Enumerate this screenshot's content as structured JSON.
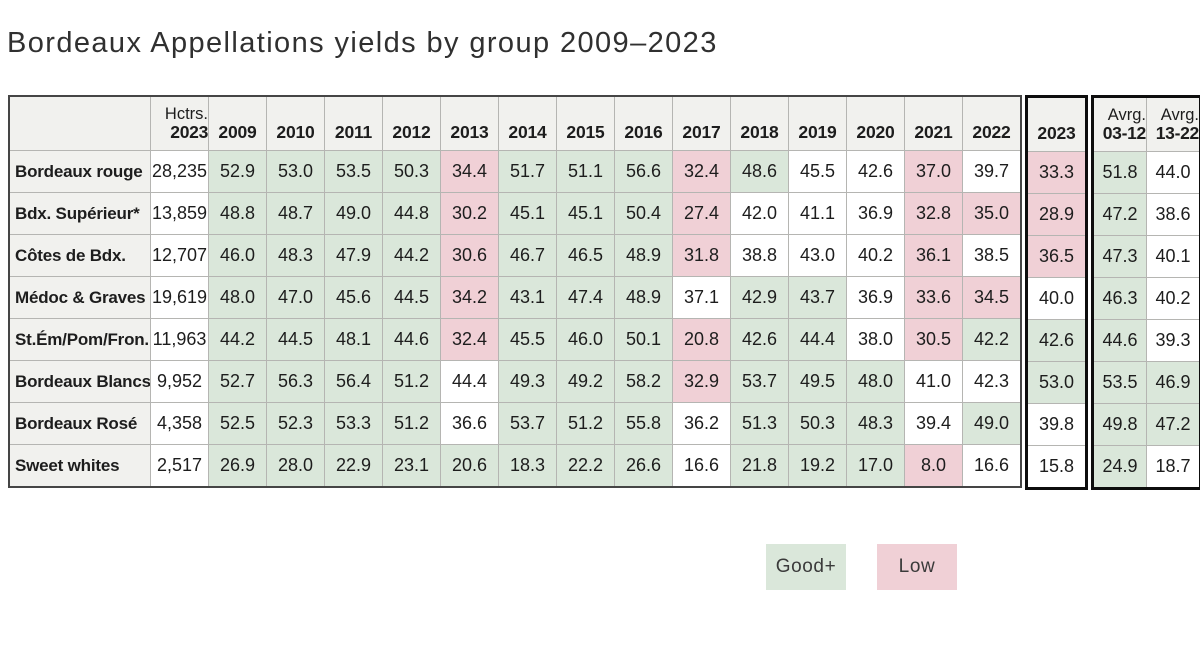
{
  "chart_data": {
    "type": "table",
    "title": "Bordeaux Appellations yields by group 2009–2023",
    "columns": {
      "hectares_header": {
        "line1": "Hctrs.",
        "line2": "2023"
      },
      "years": [
        "2009",
        "2010",
        "2011",
        "2012",
        "2013",
        "2014",
        "2015",
        "2016",
        "2017",
        "2018",
        "2019",
        "2020",
        "2021",
        "2022"
      ],
      "year_2023_label": "2023",
      "avg_headers": [
        {
          "line1": "Avrg.",
          "line2": "03-12"
        },
        {
          "line1": "Avrg.",
          "line2": "13-22"
        }
      ]
    },
    "state_meaning": {
      "good": "Good+",
      "low": "Low",
      "neutral": "unshaded"
    },
    "rows": [
      {
        "label": "Bordeaux rouge",
        "hectares": "28,235",
        "yields": [
          [
            "52.9",
            "good"
          ],
          [
            "53.0",
            "good"
          ],
          [
            "53.5",
            "good"
          ],
          [
            "50.3",
            "good"
          ],
          [
            "34.4",
            "low"
          ],
          [
            "51.7",
            "good"
          ],
          [
            "51.1",
            "good"
          ],
          [
            "56.6",
            "good"
          ],
          [
            "32.4",
            "low"
          ],
          [
            "48.6",
            "good"
          ],
          [
            "45.5",
            "neutral"
          ],
          [
            "42.6",
            "neutral"
          ],
          [
            "37.0",
            "low"
          ],
          [
            "39.7",
            "neutral"
          ]
        ],
        "y2023": [
          "33.3",
          "low"
        ],
        "averages": [
          [
            "51.8",
            "good"
          ],
          [
            "44.0",
            "neutral"
          ]
        ]
      },
      {
        "label": "Bdx. Supérieur*",
        "hectares": "13,859",
        "yields": [
          [
            "48.8",
            "good"
          ],
          [
            "48.7",
            "good"
          ],
          [
            "49.0",
            "good"
          ],
          [
            "44.8",
            "good"
          ],
          [
            "30.2",
            "low"
          ],
          [
            "45.1",
            "good"
          ],
          [
            "45.1",
            "good"
          ],
          [
            "50.4",
            "good"
          ],
          [
            "27.4",
            "low"
          ],
          [
            "42.0",
            "neutral"
          ],
          [
            "41.1",
            "neutral"
          ],
          [
            "36.9",
            "neutral"
          ],
          [
            "32.8",
            "low"
          ],
          [
            "35.0",
            "low"
          ]
        ],
        "y2023": [
          "28.9",
          "low"
        ],
        "averages": [
          [
            "47.2",
            "good"
          ],
          [
            "38.6",
            "neutral"
          ]
        ]
      },
      {
        "label": "Côtes de Bdx.",
        "hectares": "12,707",
        "yields": [
          [
            "46.0",
            "good"
          ],
          [
            "48.3",
            "good"
          ],
          [
            "47.9",
            "good"
          ],
          [
            "44.2",
            "good"
          ],
          [
            "30.6",
            "low"
          ],
          [
            "46.7",
            "good"
          ],
          [
            "46.5",
            "good"
          ],
          [
            "48.9",
            "good"
          ],
          [
            "31.8",
            "low"
          ],
          [
            "38.8",
            "neutral"
          ],
          [
            "43.0",
            "neutral"
          ],
          [
            "40.2",
            "neutral"
          ],
          [
            "36.1",
            "low"
          ],
          [
            "38.5",
            "neutral"
          ]
        ],
        "y2023": [
          "36.5",
          "low"
        ],
        "averages": [
          [
            "47.3",
            "good"
          ],
          [
            "40.1",
            "neutral"
          ]
        ]
      },
      {
        "label": "Médoc & Graves",
        "hectares": "19,619",
        "yields": [
          [
            "48.0",
            "good"
          ],
          [
            "47.0",
            "good"
          ],
          [
            "45.6",
            "good"
          ],
          [
            "44.5",
            "good"
          ],
          [
            "34.2",
            "low"
          ],
          [
            "43.1",
            "good"
          ],
          [
            "47.4",
            "good"
          ],
          [
            "48.9",
            "good"
          ],
          [
            "37.1",
            "neutral"
          ],
          [
            "42.9",
            "good"
          ],
          [
            "43.7",
            "good"
          ],
          [
            "36.9",
            "neutral"
          ],
          [
            "33.6",
            "low"
          ],
          [
            "34.5",
            "low"
          ]
        ],
        "y2023": [
          "40.0",
          "neutral"
        ],
        "averages": [
          [
            "46.3",
            "good"
          ],
          [
            "40.2",
            "neutral"
          ]
        ]
      },
      {
        "label": "St.Ém/Pom/Fron.",
        "hectares": "11,963",
        "yields": [
          [
            "44.2",
            "good"
          ],
          [
            "44.5",
            "good"
          ],
          [
            "48.1",
            "good"
          ],
          [
            "44.6",
            "good"
          ],
          [
            "32.4",
            "low"
          ],
          [
            "45.5",
            "good"
          ],
          [
            "46.0",
            "good"
          ],
          [
            "50.1",
            "good"
          ],
          [
            "20.8",
            "low"
          ],
          [
            "42.6",
            "good"
          ],
          [
            "44.4",
            "good"
          ],
          [
            "38.0",
            "neutral"
          ],
          [
            "30.5",
            "low"
          ],
          [
            "42.2",
            "good"
          ]
        ],
        "y2023": [
          "42.6",
          "good"
        ],
        "averages": [
          [
            "44.6",
            "good"
          ],
          [
            "39.3",
            "neutral"
          ]
        ]
      },
      {
        "label": "Bordeaux Blancs",
        "hectares": "9,952",
        "yields": [
          [
            "52.7",
            "good"
          ],
          [
            "56.3",
            "good"
          ],
          [
            "56.4",
            "good"
          ],
          [
            "51.2",
            "good"
          ],
          [
            "44.4",
            "neutral"
          ],
          [
            "49.3",
            "good"
          ],
          [
            "49.2",
            "good"
          ],
          [
            "58.2",
            "good"
          ],
          [
            "32.9",
            "low"
          ],
          [
            "53.7",
            "good"
          ],
          [
            "49.5",
            "good"
          ],
          [
            "48.0",
            "good"
          ],
          [
            "41.0",
            "neutral"
          ],
          [
            "42.3",
            "neutral"
          ]
        ],
        "y2023": [
          "53.0",
          "good"
        ],
        "averages": [
          [
            "53.5",
            "good"
          ],
          [
            "46.9",
            "good"
          ]
        ]
      },
      {
        "label": "Bordeaux Rosé",
        "hectares": "4,358",
        "yields": [
          [
            "52.5",
            "good"
          ],
          [
            "52.3",
            "good"
          ],
          [
            "53.3",
            "good"
          ],
          [
            "51.2",
            "good"
          ],
          [
            "36.6",
            "neutral"
          ],
          [
            "53.7",
            "good"
          ],
          [
            "51.2",
            "good"
          ],
          [
            "55.8",
            "good"
          ],
          [
            "36.2",
            "neutral"
          ],
          [
            "51.3",
            "good"
          ],
          [
            "50.3",
            "good"
          ],
          [
            "48.3",
            "good"
          ],
          [
            "39.4",
            "neutral"
          ],
          [
            "49.0",
            "good"
          ]
        ],
        "y2023": [
          "39.8",
          "neutral"
        ],
        "averages": [
          [
            "49.8",
            "good"
          ],
          [
            "47.2",
            "good"
          ]
        ]
      },
      {
        "label": "Sweet whites",
        "hectares": "2,517",
        "yields": [
          [
            "26.9",
            "good"
          ],
          [
            "28.0",
            "good"
          ],
          [
            "22.9",
            "good"
          ],
          [
            "23.1",
            "good"
          ],
          [
            "20.6",
            "good"
          ],
          [
            "18.3",
            "good"
          ],
          [
            "22.2",
            "good"
          ],
          [
            "26.6",
            "good"
          ],
          [
            "16.6",
            "neutral"
          ],
          [
            "21.8",
            "good"
          ],
          [
            "19.2",
            "good"
          ],
          [
            "17.0",
            "good"
          ],
          [
            "8.0",
            "low"
          ],
          [
            "16.6",
            "neutral"
          ]
        ],
        "y2023": [
          "15.8",
          "neutral"
        ],
        "averages": [
          [
            "24.9",
            "good"
          ],
          [
            "18.7",
            "neutral"
          ]
        ]
      }
    ],
    "legend": {
      "good_label": "Good+",
      "low_label": "Low"
    },
    "colors": {
      "good": "#dae7da",
      "low": "#f0d0d6",
      "header_bg": "#f1f1ee",
      "grid_line": "#b5b5b2",
      "outer_border": "#454545",
      "highlight_border": "#0d0d0d",
      "text": "#1d1d1d",
      "title": "#303030"
    }
  }
}
